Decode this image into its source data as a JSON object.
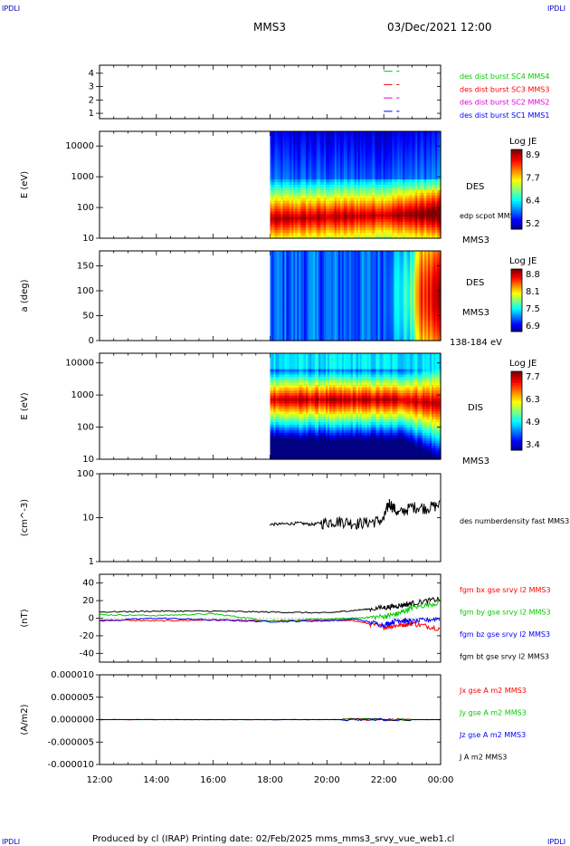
{
  "header": {
    "corner_tl": "IPDLI",
    "corner_tr": "IPDLI",
    "corner_bl": "IPDLI",
    "corner_br": "IPDLI",
    "title": "MMS3",
    "datetime": "03/Dec/2021 12:00",
    "footer": "Produced by cl (IRAP)   Printing date: 02/Feb/2025   mms_mms3_srvy_vue_web1.cl"
  },
  "colors": {
    "red": "#ff0000",
    "green": "#00cc00",
    "blue": "#0000ff",
    "magenta": "#dd00dd",
    "black": "#000000",
    "corner": "#0000cc"
  },
  "chart_data": [
    {
      "type": "line",
      "name": "burst indicator",
      "yticks": [
        "1",
        "2",
        "3",
        "4"
      ],
      "ylim": [
        0.6,
        4.6
      ],
      "legend": [
        {
          "label": "des dist burst SC1 MMS1",
          "color": "#0000ff",
          "level": 1
        },
        {
          "label": "des dist burst SC2 MMS2",
          "color": "#dd00dd",
          "level": 2
        },
        {
          "label": "des dist burst SC3 MMS3",
          "color": "#ff0000",
          "level": 3
        },
        {
          "label": "des dist burst SC4 MMS4",
          "color": "#00cc00",
          "level": 4
        }
      ],
      "burst_intervals_hours": [
        [
          22.0,
          22.3
        ],
        [
          22.45,
          22.55
        ]
      ]
    },
    {
      "type": "heatmap",
      "name": "electron energy spectrogram",
      "ylabel": "E (eV)",
      "yscale": "log",
      "ylim": [
        10,
        30000
      ],
      "yticks": [
        "10",
        "100",
        "1000",
        "10000"
      ],
      "data_start_hour": 18.0,
      "right_labels": [
        "DES",
        "edp scpot MMS3",
        "MMS3"
      ],
      "colorbar": {
        "title": "Log JE",
        "ticks": [
          "8.9",
          "7.7",
          "6.4",
          "5.2"
        ],
        "range": [
          5.2,
          8.9
        ]
      }
    },
    {
      "type": "heatmap",
      "name": "electron pitch angle",
      "ylabel": "a (deg)",
      "ylim": [
        0,
        180
      ],
      "yticks": [
        "0",
        "50",
        "100",
        "150"
      ],
      "data_start_hour": 18.0,
      "right_labels": [
        "DES",
        "MMS3",
        "138-184 eV"
      ],
      "colorbar": {
        "title": "Log JE",
        "ticks": [
          "8.8",
          "8.1",
          "7.5",
          "6.9"
        ],
        "range": [
          6.9,
          8.8
        ]
      }
    },
    {
      "type": "heatmap",
      "name": "ion energy spectrogram",
      "ylabel": "E (eV)",
      "yscale": "log",
      "ylim": [
        10,
        20000
      ],
      "yticks": [
        "10",
        "100",
        "1000",
        "10000"
      ],
      "data_start_hour": 18.0,
      "right_labels": [
        "DIS",
        "MMS3"
      ],
      "colorbar": {
        "title": "Log JE",
        "ticks": [
          "7.7",
          "6.3",
          "4.9",
          "3.4"
        ],
        "range": [
          3.4,
          7.7
        ]
      }
    },
    {
      "type": "line",
      "name": "density",
      "ylabel": "(cm^-3)",
      "yscale": "log",
      "ylim": [
        1,
        100
      ],
      "yticks": [
        "1",
        "10",
        "100"
      ],
      "series": [
        {
          "name": "des numberdensity fast MMS3",
          "color": "#000000",
          "x": [
            18.0,
            18.5,
            19.0,
            19.5,
            20.0,
            20.5,
            21.0,
            21.5,
            22.0,
            22.2,
            22.5,
            23.0,
            23.5,
            24.0
          ],
          "y": [
            7,
            7.2,
            7.5,
            7,
            8,
            8.5,
            7.5,
            8,
            9,
            22,
            12,
            18,
            17,
            20
          ]
        }
      ]
    },
    {
      "type": "line",
      "name": "magnetic field",
      "ylabel": "(nT)",
      "ylim": [
        -50,
        50
      ],
      "yticks": [
        "-40",
        "-20",
        "0",
        "20",
        "40"
      ],
      "series": [
        {
          "name": "fgm bx gse srvy l2 MMS3",
          "color": "#ff0000",
          "x": [
            12,
            14,
            16,
            18,
            20,
            21,
            22,
            22.5,
            23,
            24
          ],
          "y": [
            -2,
            -3,
            -2,
            -3,
            -2,
            -3,
            -10,
            -8,
            -6,
            -12
          ]
        },
        {
          "name": "fgm by gse srvy l2 MMS3",
          "color": "#00cc00",
          "x": [
            12,
            14,
            16,
            18,
            20,
            21,
            22,
            22.5,
            23,
            24
          ],
          "y": [
            4,
            3,
            5,
            -3,
            -1,
            0,
            2,
            5,
            12,
            18
          ]
        },
        {
          "name": "fgm bz gse srvy l2 MMS3",
          "color": "#0000ff",
          "x": [
            12,
            14,
            16,
            18,
            20,
            21,
            22,
            22.5,
            23,
            24
          ],
          "y": [
            -3,
            0,
            -2,
            -4,
            -3,
            -1,
            -8,
            -2,
            -4,
            0
          ]
        },
        {
          "name": "fgm bt gse srvy l2 MMS3",
          "color": "#000000",
          "x": [
            12,
            14,
            16,
            18,
            20,
            21,
            22,
            22.5,
            23,
            24
          ],
          "y": [
            7,
            8,
            8,
            7,
            6,
            9,
            12,
            14,
            17,
            22
          ]
        }
      ]
    },
    {
      "type": "line",
      "name": "current density",
      "ylabel": "(A/m2)",
      "ylim": [
        -1e-05,
        1e-05
      ],
      "yticks": [
        "-0.000010",
        "-0.000005",
        "0.000000",
        "0.000005",
        "0.000010"
      ],
      "series": [
        {
          "name": "Jx gse A m2 MMS3",
          "color": "#ff0000",
          "x": [
            12,
            24
          ],
          "y": [
            0,
            0
          ]
        },
        {
          "name": "Jy gse A m2 MMS3",
          "color": "#00cc00",
          "x": [
            12,
            24
          ],
          "y": [
            0,
            0
          ]
        },
        {
          "name": "Jz gse A m2 MMS3",
          "color": "#0000ff",
          "x": [
            12,
            24
          ],
          "y": [
            0,
            0
          ]
        },
        {
          "name": "J A m2 MMS3",
          "color": "#000000",
          "x": [
            12,
            24
          ],
          "y": [
            0,
            0
          ]
        }
      ]
    }
  ],
  "xaxis": {
    "ticks": [
      "12:00",
      "14:00",
      "16:00",
      "18:00",
      "20:00",
      "22:00",
      "00:00"
    ],
    "range_hours": [
      12,
      24
    ]
  }
}
